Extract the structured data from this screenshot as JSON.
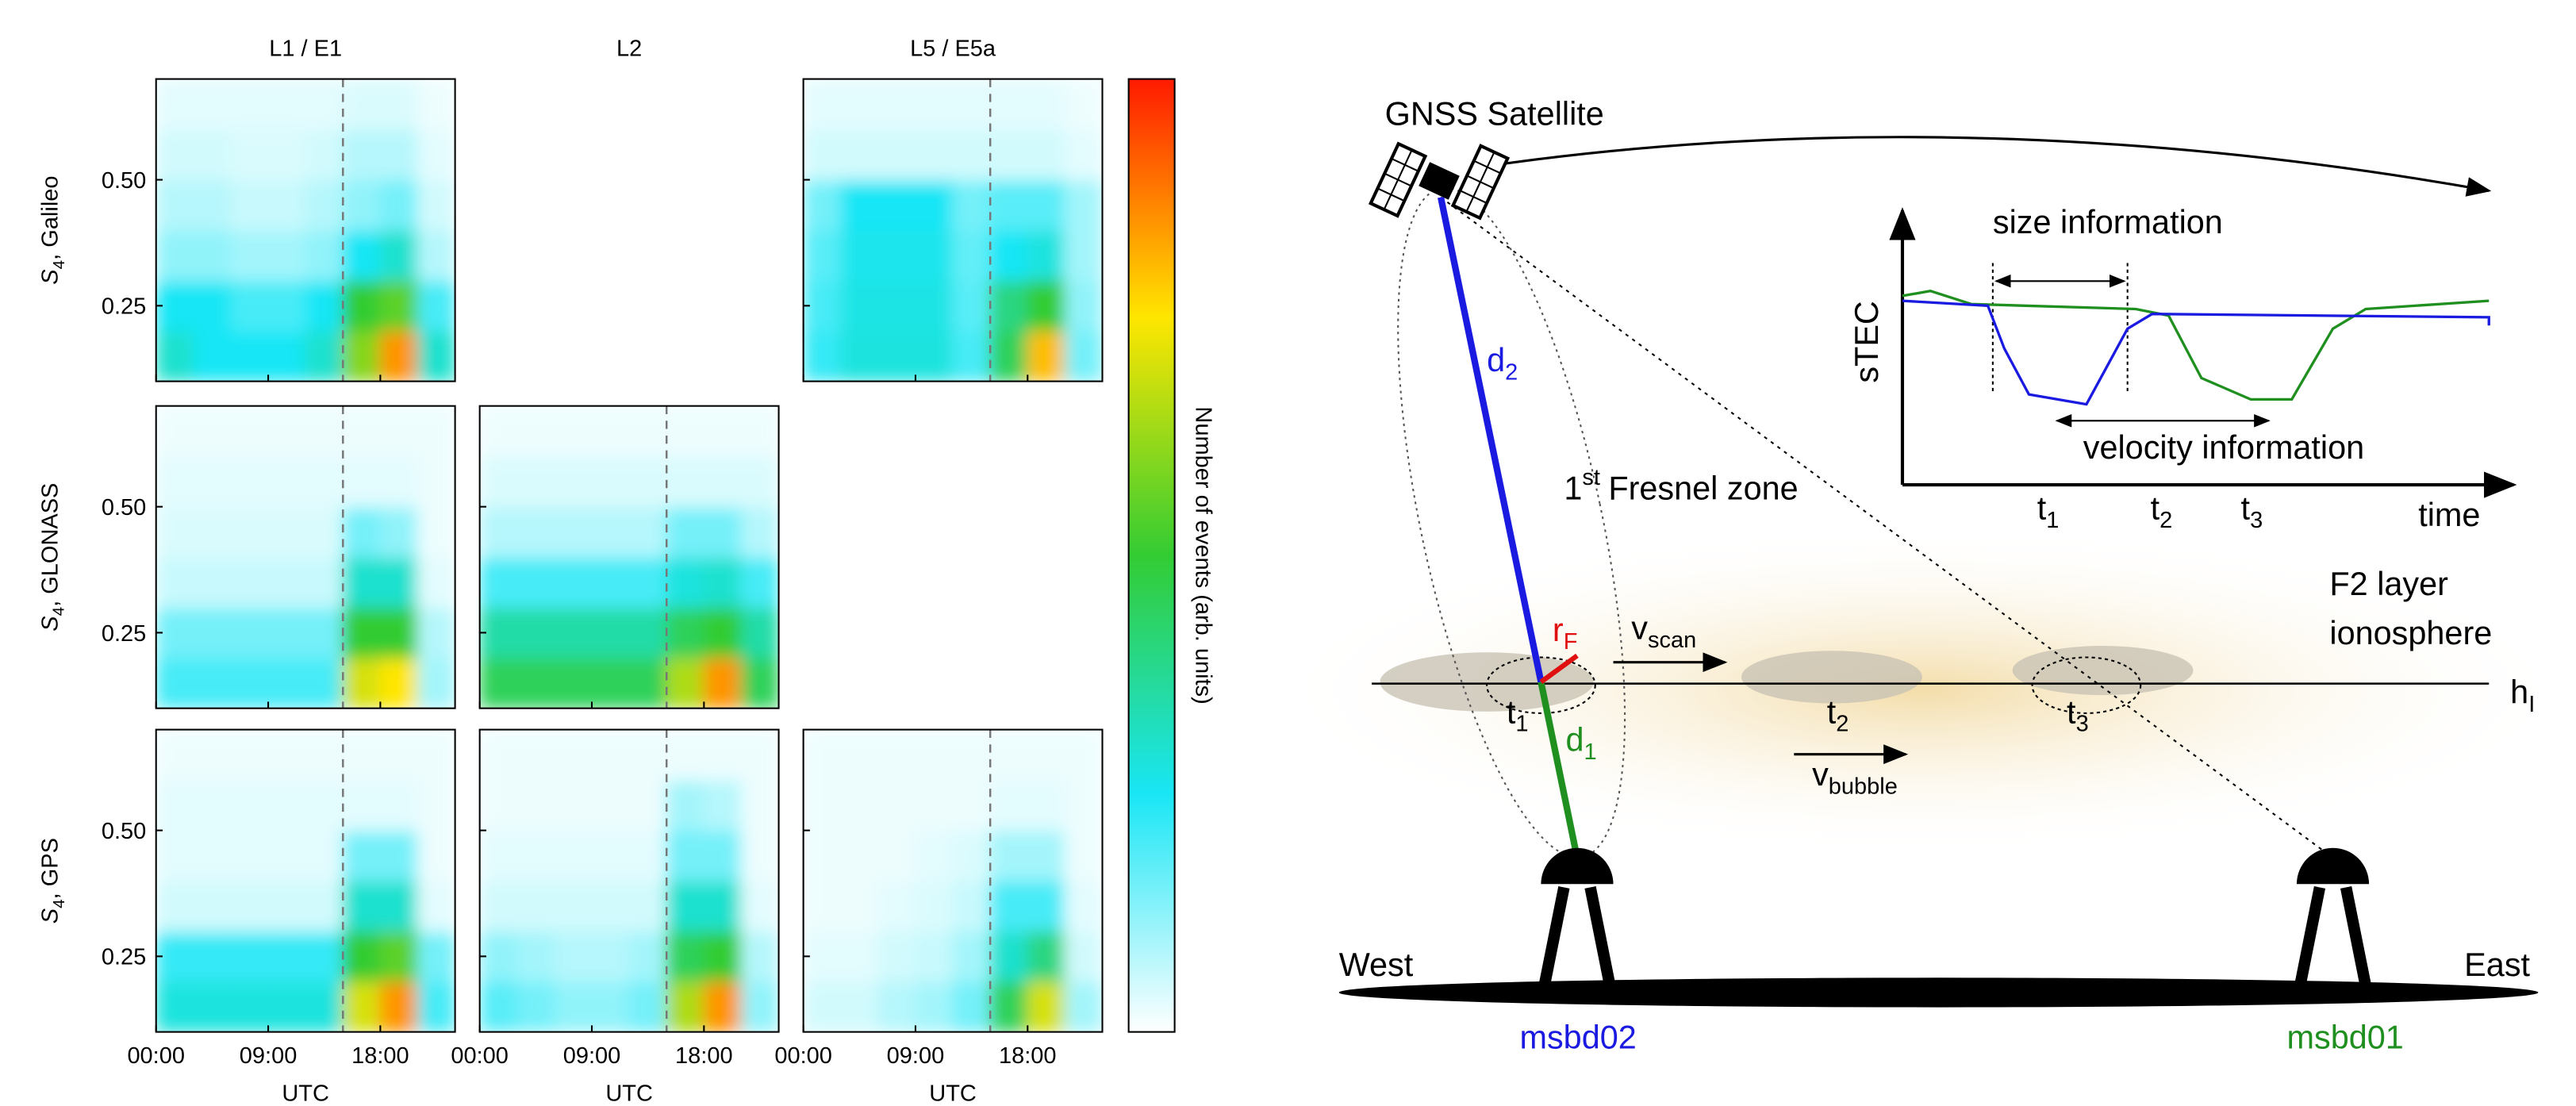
{
  "chart_data": {
    "type": "heatmap",
    "columns": [
      "L1 / E1",
      "L2",
      "L5 / E5a"
    ],
    "rows": [
      {
        "symbol": "S",
        "sub": "4",
        "name": ", Galileo"
      },
      {
        "symbol": "S",
        "sub": "4",
        "name": ", GLONASS"
      },
      {
        "symbol": "S",
        "sub": "4",
        "name": ", GPS"
      }
    ],
    "xlabel": "UTC",
    "colorbar_label": "Number of events (arb. units)",
    "colormap": [
      "#ffffff",
      "#19e6f5",
      "#33cc33",
      "#ffe600",
      "#ff1a00"
    ],
    "xlim": [
      0,
      24
    ],
    "xticks": [
      {
        "value": 0,
        "label": "00:00"
      },
      {
        "value": 9,
        "label": "09:00"
      },
      {
        "value": 18,
        "label": "18:00"
      }
    ],
    "ylim": [
      0.1,
      0.7
    ],
    "yticks": [
      0.25,
      {
        "value": 0.5,
        "label": "0.50"
      }
    ],
    "vline": 15,
    "panels": [
      [
        [
          [
            0.3,
            0.25,
            0.25,
            0.25,
            0.3,
            0.6,
            0.85,
            0.3
          ],
          [
            0.25,
            0.25,
            0.2,
            0.2,
            0.25,
            0.5,
            0.55,
            0.2
          ],
          [
            0.12,
            0.12,
            0.1,
            0.1,
            0.12,
            0.25,
            0.3,
            0.08
          ],
          [
            0.08,
            0.08,
            0.06,
            0.06,
            0.08,
            0.12,
            0.15,
            0.05
          ],
          [
            0.05,
            0.05,
            0.04,
            0.04,
            0.05,
            0.08,
            0.08,
            0.03
          ],
          [
            0.03,
            0.03,
            0.03,
            0.03,
            0.03,
            0.04,
            0.04,
            0.02
          ]
        ],
        null,
        [
          [
            0.22,
            0.28,
            0.28,
            0.28,
            0.2,
            0.45,
            0.8,
            0.15
          ],
          [
            0.2,
            0.27,
            0.27,
            0.27,
            0.18,
            0.4,
            0.5,
            0.12
          ],
          [
            0.18,
            0.26,
            0.26,
            0.26,
            0.17,
            0.25,
            0.28,
            0.1
          ],
          [
            0.15,
            0.25,
            0.25,
            0.25,
            0.15,
            0.18,
            0.18,
            0.1
          ],
          [
            0.05,
            0.05,
            0.05,
            0.05,
            0.05,
            0.05,
            0.05,
            0.03
          ],
          [
            0.03,
            0.03,
            0.03,
            0.03,
            0.03,
            0.03,
            0.03,
            0.02
          ]
        ]
      ],
      [
        [
          [
            0.2,
            0.2,
            0.2,
            0.2,
            0.2,
            0.7,
            0.75,
            0.1
          ],
          [
            0.15,
            0.15,
            0.15,
            0.15,
            0.15,
            0.5,
            0.5,
            0.08
          ],
          [
            0.06,
            0.06,
            0.06,
            0.06,
            0.06,
            0.3,
            0.3,
            0.03
          ],
          [
            0.04,
            0.04,
            0.04,
            0.04,
            0.04,
            0.15,
            0.12,
            0.02
          ],
          [
            0.03,
            0.03,
            0.03,
            0.03,
            0.03,
            0.03,
            0.03,
            0.02
          ],
          [
            0.02,
            0.02,
            0.02,
            0.02,
            0.02,
            0.02,
            0.02,
            0.02
          ]
        ],
        [
          [
            0.45,
            0.45,
            0.45,
            0.45,
            0.45,
            0.65,
            0.85,
            0.45
          ],
          [
            0.35,
            0.35,
            0.35,
            0.35,
            0.35,
            0.45,
            0.5,
            0.35
          ],
          [
            0.2,
            0.2,
            0.2,
            0.2,
            0.2,
            0.28,
            0.3,
            0.2
          ],
          [
            0.08,
            0.08,
            0.08,
            0.08,
            0.08,
            0.15,
            0.15,
            0.08
          ],
          [
            0.04,
            0.04,
            0.04,
            0.04,
            0.04,
            0.04,
            0.04,
            0.04
          ],
          [
            0.02,
            0.02,
            0.02,
            0.02,
            0.02,
            0.02,
            0.02,
            0.02
          ]
        ],
        null
      ],
      [
        [
          [
            0.28,
            0.28,
            0.28,
            0.28,
            0.28,
            0.7,
            0.85,
            0.2
          ],
          [
            0.22,
            0.22,
            0.22,
            0.22,
            0.22,
            0.5,
            0.55,
            0.15
          ],
          [
            0.05,
            0.05,
            0.05,
            0.05,
            0.05,
            0.3,
            0.3,
            0.03
          ],
          [
            0.03,
            0.03,
            0.03,
            0.03,
            0.03,
            0.15,
            0.15,
            0.02
          ],
          [
            0.03,
            0.03,
            0.03,
            0.03,
            0.03,
            0.03,
            0.03,
            0.02
          ],
          [
            0.02,
            0.02,
            0.02,
            0.02,
            0.02,
            0.02,
            0.02,
            0.02
          ]
        ],
        [
          [
            0.18,
            0.15,
            0.12,
            0.12,
            0.15,
            0.65,
            0.85,
            0.12
          ],
          [
            0.12,
            0.1,
            0.08,
            0.08,
            0.1,
            0.45,
            0.5,
            0.08
          ],
          [
            0.05,
            0.05,
            0.05,
            0.05,
            0.05,
            0.3,
            0.3,
            0.03
          ],
          [
            0.03,
            0.03,
            0.03,
            0.03,
            0.03,
            0.15,
            0.15,
            0.02
          ],
          [
            0.02,
            0.02,
            0.02,
            0.02,
            0.02,
            0.1,
            0.08,
            0.02
          ],
          [
            0.02,
            0.02,
            0.02,
            0.02,
            0.02,
            0.02,
            0.02,
            0.02
          ]
        ],
        [
          [
            0.05,
            0.05,
            0.08,
            0.1,
            0.15,
            0.45,
            0.7,
            0.1
          ],
          [
            0.03,
            0.03,
            0.05,
            0.06,
            0.1,
            0.3,
            0.4,
            0.05
          ],
          [
            0.02,
            0.02,
            0.03,
            0.04,
            0.06,
            0.2,
            0.2,
            0.03
          ],
          [
            0.02,
            0.02,
            0.02,
            0.03,
            0.04,
            0.1,
            0.1,
            0.02
          ],
          [
            0.02,
            0.02,
            0.02,
            0.02,
            0.02,
            0.03,
            0.03,
            0.02
          ],
          [
            0.02,
            0.02,
            0.02,
            0.02,
            0.02,
            0.02,
            0.02,
            0.02
          ]
        ]
      ]
    ]
  },
  "diagram": {
    "satellite": "GNSS Satellite",
    "inset": {
      "y_label": "sTEC",
      "x_label": "time",
      "size": "size information",
      "velocity": "velocity information",
      "times": [
        {
          "base": "t",
          "sub": "1"
        },
        {
          "base": "t",
          "sub": "2"
        },
        {
          "base": "t",
          "sub": "3"
        }
      ]
    },
    "fresnel": {
      "number": "1",
      "suffix": "st",
      "label": "Fresnel zone"
    },
    "d2": {
      "base": "d",
      "sub": "2"
    },
    "d1": {
      "base": "d",
      "sub": "1"
    },
    "rF": {
      "base": "r",
      "sub": "F"
    },
    "v_scan": {
      "base": "v",
      "sub": "scan"
    },
    "v_bubble": {
      "base": "v",
      "sub": "bubble"
    },
    "layer_times": [
      {
        "base": "t",
        "sub": "1"
      },
      {
        "base": "t",
        "sub": "2"
      },
      {
        "base": "t",
        "sub": "3"
      }
    ],
    "layer": [
      "F2 layer",
      "ionosphere"
    ],
    "height": {
      "base": "h",
      "sub": "I"
    },
    "west": "West",
    "east": "East",
    "station_west": "msbd02",
    "station_east": "msbd01"
  }
}
